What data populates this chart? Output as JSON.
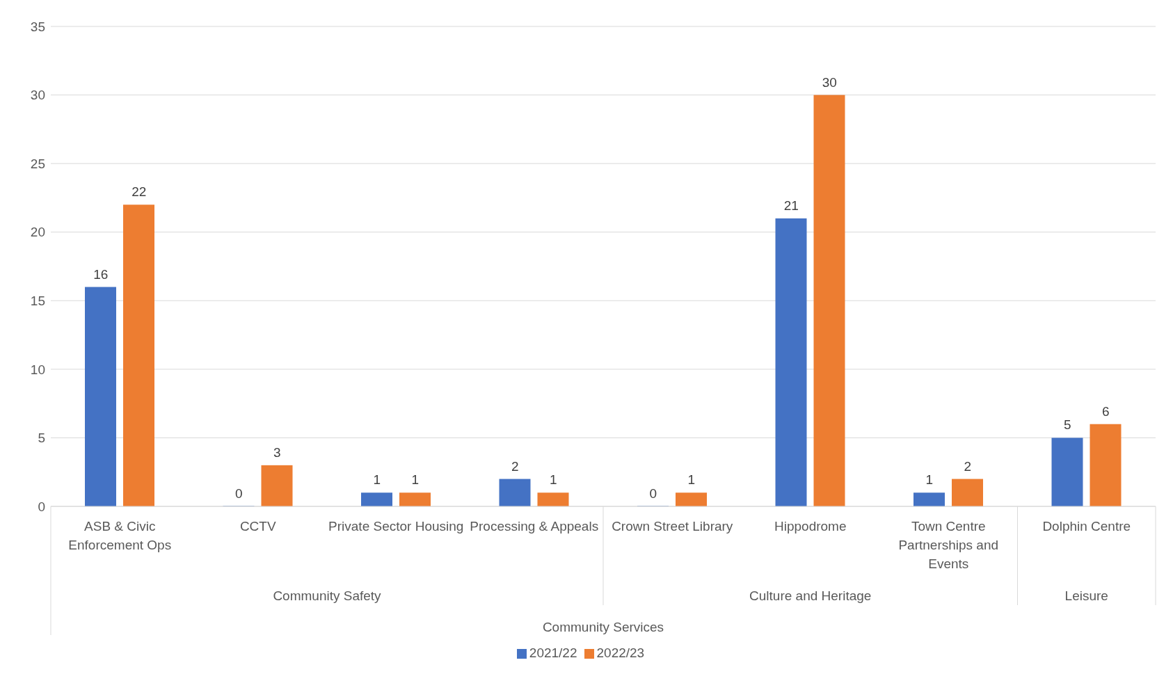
{
  "chart_data": {
    "type": "bar",
    "categories": [
      "ASB & Civic Enforcement Ops",
      "CCTV",
      "Private Sector Housing",
      "Processing & Appeals",
      "Crown Street Library",
      "Hippodrome",
      "Town Centre Partnerships and Events",
      "Dolphin Centre"
    ],
    "series": [
      {
        "name": "2021/22",
        "color": "#4472c4",
        "values": [
          16,
          0,
          1,
          2,
          0,
          21,
          1,
          5
        ]
      },
      {
        "name": "2022/23",
        "color": "#ed7d31",
        "values": [
          22,
          3,
          1,
          1,
          1,
          30,
          2,
          6
        ]
      }
    ],
    "annotations": [
      "Community Safety",
      "Culture and Heritage",
      "Leisure",
      "Community Services"
    ],
    "ylim": [
      0,
      35
    ],
    "yticks": [
      0,
      5,
      10,
      15,
      20,
      25,
      30,
      35
    ],
    "grid": "y",
    "legend": "bottom",
    "data_labels": true
  }
}
